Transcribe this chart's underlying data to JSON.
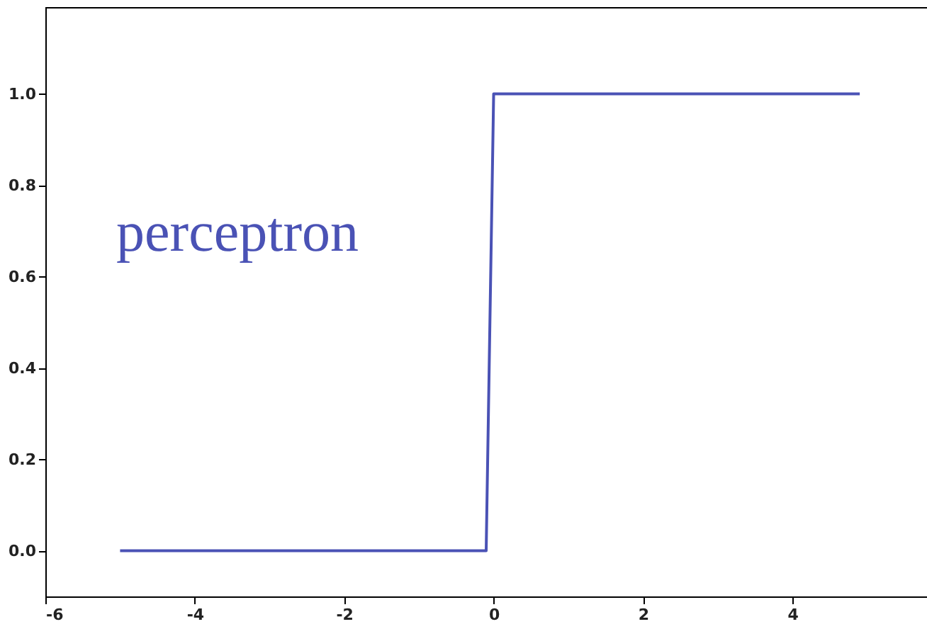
{
  "chart_data": {
    "type": "line",
    "x": [
      -5,
      -0.1,
      0,
      4.9
    ],
    "series": [
      {
        "color": "#4a52b5",
        "values": [
          0,
          0,
          1,
          1
        ]
      }
    ],
    "xlim": [
      -6,
      5.8
    ],
    "xticks": [
      -6,
      -4,
      -2,
      0,
      2,
      4
    ],
    "ylim": [
      -0.1,
      1.19
    ],
    "yticks": [
      {
        "value": 0,
        "label": "0.0"
      },
      0.2,
      0.4,
      0.6,
      0.8,
      {
        "value": 1,
        "label": "1.0"
      }
    ],
    "annotations": [
      "perceptron"
    ],
    "grid": false,
    "legend": false,
    "marker": "none",
    "line_style": "solid"
  }
}
